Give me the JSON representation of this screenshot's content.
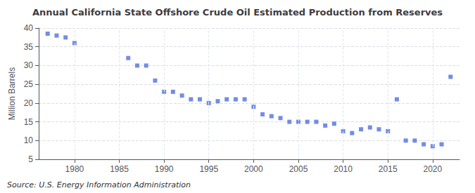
{
  "chart_data": {
    "type": "scatter",
    "title": "Annual California State Offshore Crude Oil Estimated Production from Reserves",
    "ylabel": "Million Barrels",
    "annotation": "Source: U.S. Energy Information Administration",
    "x": [
      1977,
      1978,
      1979,
      1980,
      1986,
      1987,
      1988,
      1989,
      1990,
      1991,
      1992,
      1993,
      1994,
      1995,
      1996,
      1997,
      1998,
      1999,
      2000,
      2001,
      2002,
      2003,
      2004,
      2005,
      2006,
      2007,
      2008,
      2009,
      2010,
      2011,
      2012,
      2013,
      2014,
      2015,
      2016,
      2017,
      2018,
      2019,
      2020,
      2021,
      2022
    ],
    "values": [
      38.5,
      38.0,
      37.5,
      36.0,
      32.0,
      30.0,
      30.0,
      26.0,
      23.0,
      23.0,
      22.0,
      21.0,
      21.0,
      20.0,
      20.5,
      21.0,
      21.0,
      21.0,
      19.0,
      17.0,
      16.5,
      16.0,
      15.0,
      15.0,
      15.0,
      15.0,
      14.0,
      14.5,
      12.5,
      12.0,
      13.0,
      13.5,
      13.0,
      12.5,
      21.0,
      10.0,
      10.0,
      9.0,
      8.5,
      9.0,
      27.0
    ],
    "marker": "square",
    "xlim": [
      1976,
      2023
    ],
    "xticks": [
      1980,
      1985,
      1990,
      1995,
      2000,
      2005,
      2010,
      2015,
      2020
    ],
    "ylim": [
      5,
      40
    ],
    "yticks": [
      5,
      10,
      15,
      20,
      25,
      30,
      35,
      40
    ],
    "grid": true
  }
}
